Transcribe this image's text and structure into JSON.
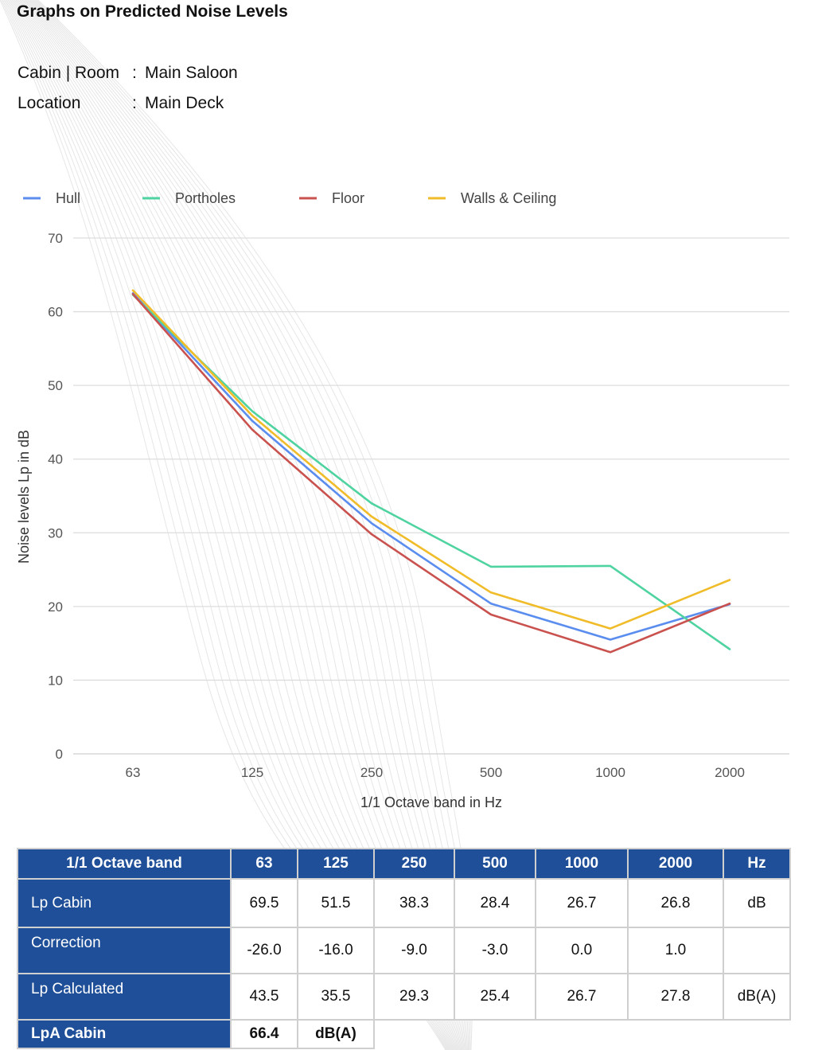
{
  "page": {
    "title": "Graphs on Predicted Noise Levels",
    "cabin_label": "Cabin | Room",
    "cabin_value": "Main Saloon",
    "location_label": "Location",
    "location_value": "Main Deck",
    "separator": ":"
  },
  "chart_data": {
    "type": "line",
    "xlabel": "1/1 Octave band in Hz",
    "ylabel": "Noise levels Lp in dB",
    "categories": [
      "63",
      "125",
      "250",
      "500",
      "1000",
      "2000"
    ],
    "ylim": [
      0,
      70
    ],
    "yticks": [
      0,
      10,
      20,
      30,
      40,
      50,
      60,
      70
    ],
    "grid": true,
    "legend_position": "top",
    "series": [
      {
        "name": "Hull",
        "color": "#5b8def",
        "values": [
          62.5,
          45.2,
          31.3,
          20.4,
          15.5,
          20.3
        ]
      },
      {
        "name": "Portholes",
        "color": "#4fd3a0",
        "values": [
          62.3,
          46.5,
          34.0,
          25.4,
          25.5,
          14.2
        ]
      },
      {
        "name": "Floor",
        "color": "#c9524f",
        "values": [
          62.4,
          44.0,
          29.8,
          18.9,
          13.8,
          20.4
        ]
      },
      {
        "name": "Walls & Ceiling",
        "color": "#f0bc2a",
        "values": [
          62.9,
          45.9,
          32.2,
          21.9,
          17.0,
          23.6
        ]
      }
    ]
  },
  "table": {
    "header": [
      "1/1 Octave band",
      "63",
      "125",
      "250",
      "500",
      "1000",
      "2000",
      "Hz"
    ],
    "rows": [
      {
        "label": "Lp Cabin",
        "values": [
          "69.5",
          "51.5",
          "38.3",
          "28.4",
          "26.7",
          "26.8"
        ],
        "unit": "dB"
      },
      {
        "label": "Correction",
        "values": [
          "-26.0",
          "-16.0",
          "-9.0",
          "-3.0",
          "0.0",
          "1.0"
        ],
        "unit": ""
      },
      {
        "label": "Lp Calculated",
        "values": [
          "43.5",
          "35.5",
          "29.3",
          "25.4",
          "26.7",
          "27.8"
        ],
        "unit": "dB(A)"
      }
    ],
    "summary": {
      "label": "LpA Cabin",
      "value": "66.4",
      "unit": "dB(A)"
    },
    "header_color": "#1f4f98"
  }
}
